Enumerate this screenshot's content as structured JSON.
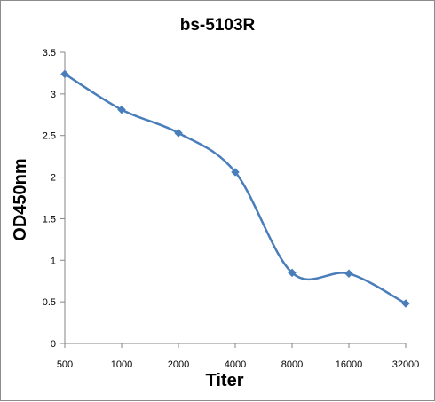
{
  "chart_data": {
    "type": "line",
    "title": "bs-5103R",
    "xlabel": "Titer",
    "ylabel": "OD450nm",
    "categories": [
      "500",
      "1000",
      "2000",
      "4000",
      "8000",
      "16000",
      "32000"
    ],
    "series": [
      {
        "values": [
          3.24,
          2.81,
          2.53,
          2.06,
          0.85,
          0.84,
          0.48
        ]
      }
    ],
    "ylim": [
      0,
      3.5
    ],
    "yticks": [
      "0",
      "0.5",
      "1",
      "1.5",
      "2",
      "2.5",
      "3",
      "3.5"
    ],
    "grid": false,
    "legend": "none",
    "smooth": true,
    "marker": "diamond",
    "line_color": "#4a7ebb",
    "marker_color": "#4a7ebb",
    "axis_color": "#868686"
  }
}
